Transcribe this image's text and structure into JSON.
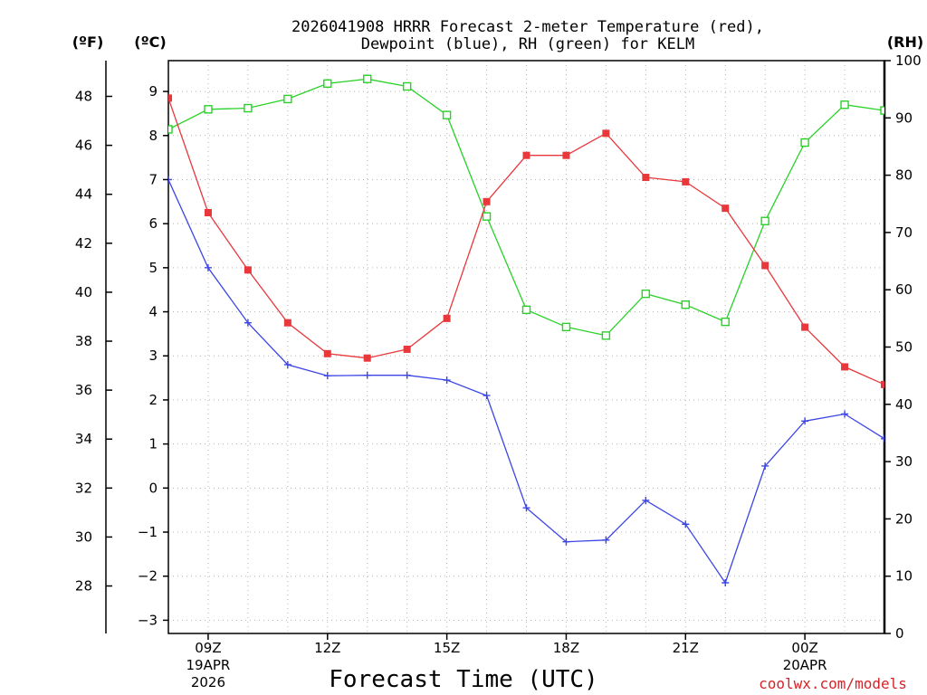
{
  "chart_data": {
    "type": "line",
    "title_line1": "2026041908 HRRR Forecast 2-meter Temperature (red),",
    "title_line2": "Dewpoint (blue), RH (green) for KELM",
    "xlabel": "Forecast Time (UTC)",
    "credit": "coolwx.com/models",
    "units": {
      "fahrenheit": "(ºF)",
      "celsius": "(ºC)",
      "rh": "(RH)"
    },
    "colors": {
      "temperature": "#e8383c",
      "dewpoint": "#3c46e6",
      "rh": "#28d228"
    },
    "x_hours": [
      8,
      9,
      10,
      11,
      12,
      13,
      14,
      15,
      16,
      17,
      18,
      19,
      20,
      21,
      22,
      23,
      24,
      25,
      26
    ],
    "x_range": [
      8,
      26
    ],
    "x_ticks": [
      {
        "hour": 9,
        "line1": "09Z",
        "line2": "19APR",
        "line3": "2026"
      },
      {
        "hour": 12,
        "line1": "12Z",
        "line2": "",
        "line3": ""
      },
      {
        "hour": 15,
        "line1": "15Z",
        "line2": "",
        "line3": ""
      },
      {
        "hour": 18,
        "line1": "18Z",
        "line2": "",
        "line3": ""
      },
      {
        "hour": 21,
        "line1": "21Z",
        "line2": "",
        "line3": ""
      },
      {
        "hour": 24,
        "line1": "00Z",
        "line2": "20APR",
        "line3": ""
      }
    ],
    "celsius_range": [
      -3.3,
      9.7
    ],
    "celsius_ticks": [
      -3,
      -2,
      -1,
      0,
      1,
      2,
      3,
      4,
      5,
      6,
      7,
      8,
      9
    ],
    "fahrenheit_ticks": [
      28,
      30,
      32,
      34,
      36,
      38,
      40,
      42,
      44,
      46,
      48
    ],
    "rh_range": [
      0,
      100
    ],
    "rh_ticks": [
      0,
      10,
      20,
      30,
      40,
      50,
      60,
      70,
      80,
      90,
      100
    ],
    "series": [
      {
        "name": "2-meter Temperature",
        "unit": "°C",
        "axis": "celsius",
        "values": [
          8.85,
          6.25,
          4.95,
          3.75,
          3.05,
          2.95,
          3.15,
          3.85,
          6.5,
          7.55,
          7.55,
          8.05,
          7.05,
          6.95,
          6.35,
          5.05,
          3.65,
          2.75,
          2.35
        ]
      },
      {
        "name": "Dewpoint",
        "unit": "°C",
        "axis": "celsius",
        "values": [
          7.0,
          5.0,
          3.75,
          2.8,
          2.55,
          2.56,
          2.56,
          2.45,
          2.1,
          -0.45,
          -1.22,
          -1.18,
          -0.28,
          -0.82,
          -2.15,
          0.5,
          1.52,
          1.68,
          1.12
        ]
      },
      {
        "name": "Relative Humidity",
        "unit": "%",
        "axis": "rh",
        "values": [
          88,
          91.5,
          91.7,
          93.3,
          96,
          96.8,
          95.5,
          90.5,
          72.8,
          56.5,
          53.5,
          52,
          59.3,
          57.4,
          54.4,
          72,
          85.7,
          92.3,
          91.3
        ]
      }
    ]
  }
}
